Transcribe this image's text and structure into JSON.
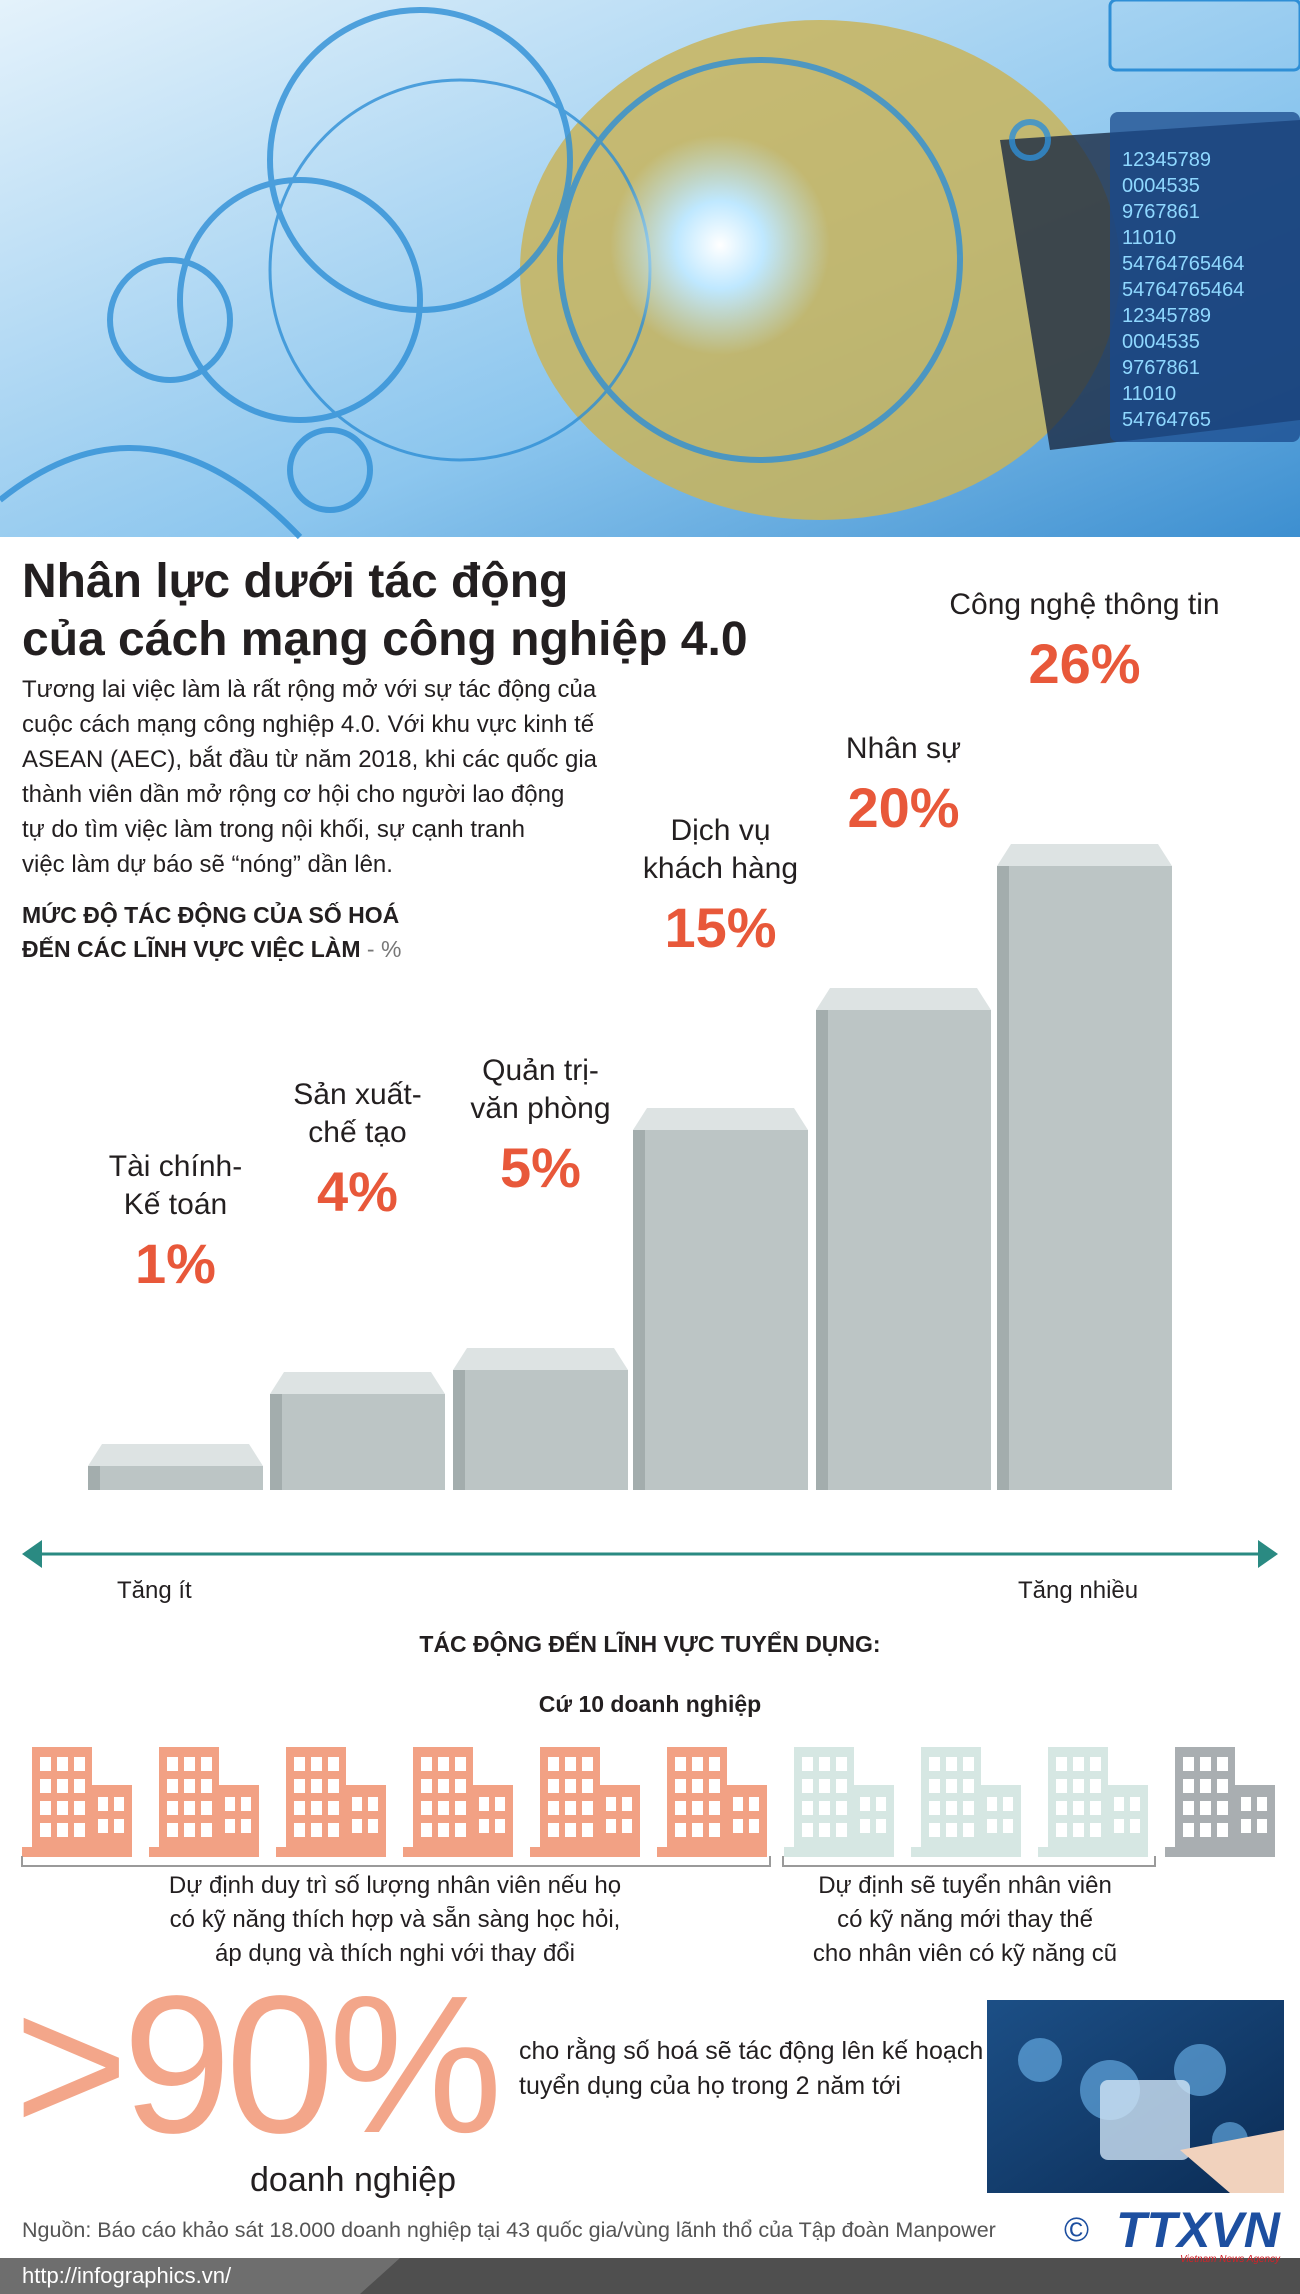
{
  "header_image": {
    "panel_numbers": [
      "12345789",
      "0004535",
      "9767861",
      "11010",
      "54764765464",
      "54764765464",
      "12345789",
      "0004535",
      "9767861",
      "11010",
      "54764765"
    ]
  },
  "title": [
    "Nhân lực dưới tác động",
    "của cách mạng công nghiệp 4.0"
  ],
  "intro": [
    "Tương lai việc làm là rất rộng mở với sự tác động của",
    "cuộc cách mạng công nghiệp 4.0. Với khu vực kinh tế",
    "ASEAN (AEC), bắt đầu từ năm 2018, khi các quốc gia",
    "thành viên dần mở rộng cơ hội cho người lao động",
    "tự do tìm việc làm trong nội khối, sự cạnh tranh",
    "việc làm dự báo sẽ “nóng” dần lên."
  ],
  "chart_data": {
    "type": "bar",
    "title": "MỨC ĐỘ TÁC ĐỘNG CỦA SỐ HOÁ\nĐẾN CÁC LĨNH VỰC VIỆC LÀM",
    "unit": "- %",
    "categories": [
      "Tài chính-\nKế toán",
      "Sản xuất-\nchế tạo",
      "Quản trị-\nvăn phòng",
      "Dịch vụ\nkhách hàng",
      "Nhân sự",
      "Công nghệ thông tin"
    ],
    "values": [
      1,
      4,
      5,
      15,
      20,
      26
    ],
    "value_labels": [
      "1%",
      "4%",
      "5%",
      "15%",
      "20%",
      "26%"
    ],
    "color": "#bcc5c5",
    "label_color": "#e8583a",
    "axis_labels": {
      "low": "Tăng ít",
      "high": "Tăng nhiều"
    }
  },
  "recruitment": {
    "title": "TÁC ĐỘNG ĐẾN LĨNH VỰC TUYỂN DỤNG:",
    "subtitle": "Cứ 10 doanh nghiệp",
    "groups": [
      "Dự định duy trì số lượng nhân viên nếu họ\ncó kỹ năng thích hợp và sẵn sàng học hỏi,\náp dụng và thích nghi với thay đổi",
      "Dự định sẽ tuyển nhân viên\ncó kỹ năng mới thay thế\ncho nhân viên có kỹ năng cũ"
    ]
  },
  "stat": {
    "value": ">90%",
    "label": "doanh nghiệp",
    "text": "cho rằng số hoá sẽ tác động lên kế hoạch\ntuyển dụng của họ trong 2 năm tới"
  },
  "source": "Nguồn: Báo cáo khảo sát 18.000 doanh nghiệp tại 43 quốc gia/vùng lãnh thổ của Tập đoàn Manpower",
  "logo": {
    "copyright": "©",
    "name": "TTXVN",
    "tagline": "Vietnam News Agency"
  },
  "url": "http://infographics.vn/"
}
